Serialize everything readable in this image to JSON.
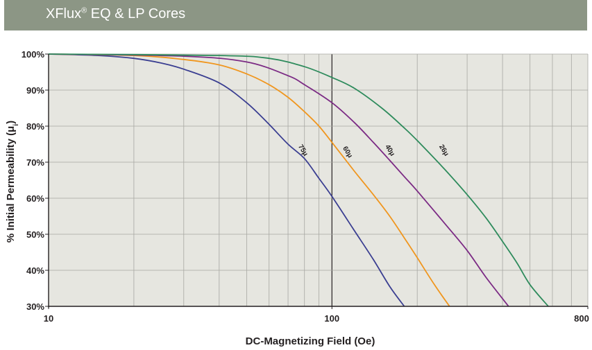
{
  "header": {
    "title_main": "XFlux",
    "title_sup": "®",
    "title_rest": " EQ & LP Cores",
    "background": "#8c9685"
  },
  "chart_data": {
    "type": "line",
    "xlabel": "DC-Magnetizing Field (Oe)",
    "ylabel": "% Initial Permeability (μ",
    "ylabel_sub": "i",
    "ylabel_end": ")",
    "x_scale": "log",
    "xlim": [
      10,
      800
    ],
    "ylim": [
      30,
      100
    ],
    "x_ticks": [
      {
        "value": 10,
        "label": "10"
      },
      {
        "value": 100,
        "label": "100"
      },
      {
        "value": 800,
        "label": "800"
      }
    ],
    "y_ticks": [
      {
        "value": 100,
        "label": "100%"
      },
      {
        "value": 90,
        "label": "90%"
      },
      {
        "value": 80,
        "label": "80%"
      },
      {
        "value": 70,
        "label": "70%"
      },
      {
        "value": 60,
        "label": "60%"
      },
      {
        "value": 50,
        "label": "50%"
      },
      {
        "value": 40,
        "label": "40%"
      },
      {
        "value": 30,
        "label": "30%"
      }
    ],
    "grid": true,
    "plot_background": "#e6e6e0",
    "series": [
      {
        "name": "75μ",
        "color": "#3a3e91",
        "label_at": [
          78,
          73
        ],
        "points": [
          [
            10,
            100
          ],
          [
            15,
            99.6
          ],
          [
            20,
            98.8
          ],
          [
            25,
            97.5
          ],
          [
            30,
            95.8
          ],
          [
            40,
            92
          ],
          [
            50,
            86.5
          ],
          [
            60,
            80.5
          ],
          [
            70,
            75
          ],
          [
            80,
            71
          ],
          [
            90,
            65.5
          ],
          [
            100,
            60.5
          ],
          [
            120,
            51
          ],
          [
            140,
            43
          ],
          [
            160,
            35.5
          ],
          [
            180,
            30
          ]
        ]
      },
      {
        "name": "60μ",
        "color": "#f0961e",
        "label_at": [
          112,
          72.5
        ],
        "points": [
          [
            10,
            100
          ],
          [
            20,
            99.6
          ],
          [
            30,
            98.5
          ],
          [
            40,
            97
          ],
          [
            50,
            94.5
          ],
          [
            60,
            91.5
          ],
          [
            70,
            88
          ],
          [
            80,
            84
          ],
          [
            90,
            80
          ],
          [
            100,
            75.5
          ],
          [
            120,
            67.5
          ],
          [
            140,
            61
          ],
          [
            160,
            55
          ],
          [
            180,
            49
          ],
          [
            200,
            43.5
          ],
          [
            230,
            36
          ],
          [
            260,
            30
          ]
        ]
      },
      {
        "name": "40μ",
        "color": "#7b2a84",
        "label_at": [
          158,
          73
        ],
        "points": [
          [
            10,
            100
          ],
          [
            30,
            99.4
          ],
          [
            50,
            97.8
          ],
          [
            70,
            94
          ],
          [
            80,
            91.5
          ],
          [
            100,
            86.5
          ],
          [
            120,
            81
          ],
          [
            140,
            75.5
          ],
          [
            160,
            70.5
          ],
          [
            180,
            66
          ],
          [
            200,
            62
          ],
          [
            250,
            53
          ],
          [
            300,
            45.5
          ],
          [
            350,
            38
          ],
          [
            420,
            30
          ]
        ]
      },
      {
        "name": "26μ",
        "color": "#2e8b5c",
        "label_at": [
          245,
          73
        ],
        "points": [
          [
            10,
            100
          ],
          [
            40,
            99.6
          ],
          [
            60,
            98.8
          ],
          [
            80,
            96.5
          ],
          [
            100,
            93.5
          ],
          [
            120,
            90.5
          ],
          [
            150,
            85
          ],
          [
            180,
            79.5
          ],
          [
            200,
            76
          ],
          [
            250,
            68
          ],
          [
            300,
            61
          ],
          [
            350,
            54.5
          ],
          [
            400,
            48
          ],
          [
            450,
            42
          ],
          [
            500,
            36
          ],
          [
            580,
            30
          ]
        ]
      }
    ]
  }
}
